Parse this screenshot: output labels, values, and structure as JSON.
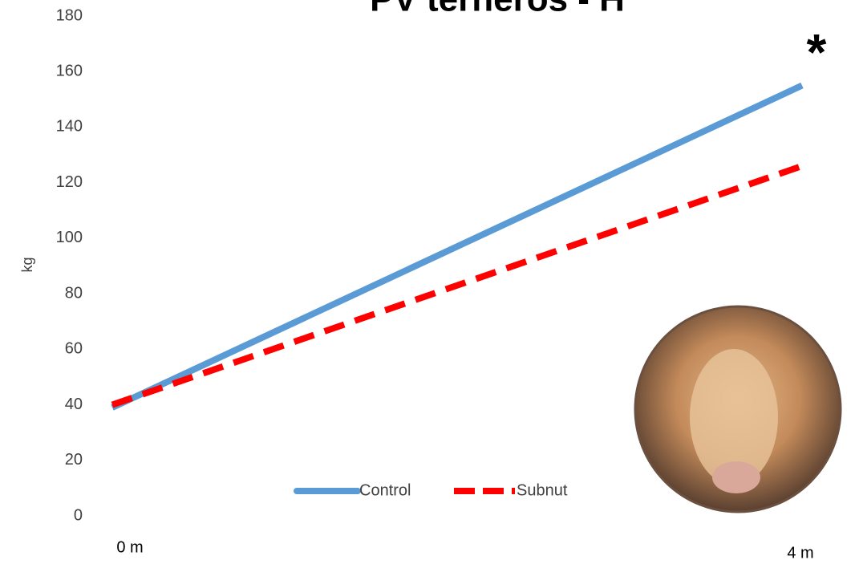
{
  "chart_data": {
    "type": "line",
    "title": "PV terneros - H",
    "y_label": "kg",
    "annotation": "*",
    "categories": [
      "0 m",
      "4 m"
    ],
    "series": [
      {
        "name": "Control",
        "color": "#5b9bd5",
        "values": [
          39,
          155
        ]
      },
      {
        "name": "Subnut",
        "color": "#ff0000",
        "values": [
          40,
          126
        ]
      }
    ],
    "ylim": [
      0,
      180
    ],
    "yticks": [
      0,
      20,
      40,
      60,
      80,
      100,
      120,
      140,
      160,
      180
    ],
    "grid": false
  }
}
